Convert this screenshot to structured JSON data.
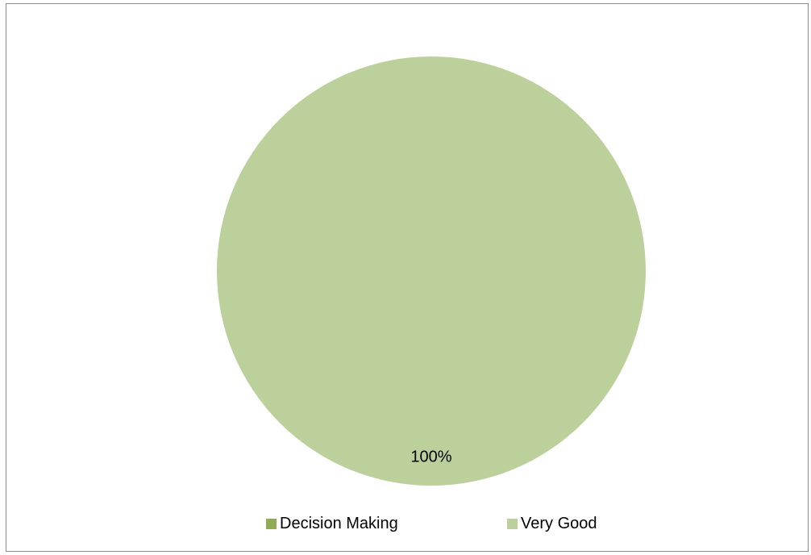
{
  "chart_data": {
    "type": "pie",
    "title": "",
    "categories": [
      "Decision Making",
      "Very Good"
    ],
    "values": [
      0,
      100
    ],
    "data_labels": [
      "",
      "100%"
    ],
    "legend_position": "bottom",
    "colors": [
      "#8fac55",
      "#bbd09a"
    ]
  },
  "legend": {
    "items": [
      {
        "label": "Decision Making",
        "color": "#8fac55"
      },
      {
        "label": "Very Good",
        "color": "#bbd09a"
      }
    ]
  }
}
